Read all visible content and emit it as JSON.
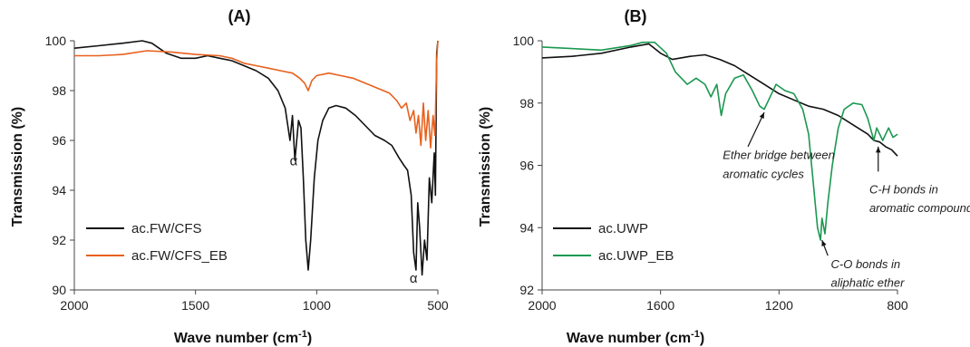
{
  "chart_data": [
    {
      "type": "line",
      "title": "(A)",
      "xlabel": "Wave number (cm",
      "xlabel_sup": "-1",
      "xlabel_end": ")",
      "ylabel": "Transmission (%)",
      "xlim": [
        2000,
        500
      ],
      "ylim": [
        90,
        100
      ],
      "xticks": [
        2000,
        1500,
        1000,
        500
      ],
      "xtick_labels": [
        "2000",
        "1500",
        "1000",
        "500"
      ],
      "yticks": [
        90,
        92,
        94,
        96,
        98,
        100
      ],
      "ytick_labels": [
        "90",
        "92",
        "94",
        "96",
        "98",
        "100"
      ],
      "grid": false,
      "legend_position": "bottom-left",
      "series": [
        {
          "name": "ac.FW/CFS",
          "color": "#111111",
          "points": [
            [
              2000,
              99.7
            ],
            [
              1900,
              99.8
            ],
            [
              1800,
              99.9
            ],
            [
              1720,
              100.0
            ],
            [
              1680,
              99.9
            ],
            [
              1620,
              99.5
            ],
            [
              1560,
              99.3
            ],
            [
              1500,
              99.3
            ],
            [
              1450,
              99.4
            ],
            [
              1400,
              99.3
            ],
            [
              1350,
              99.2
            ],
            [
              1300,
              99.0
            ],
            [
              1250,
              98.8
            ],
            [
              1200,
              98.5
            ],
            [
              1160,
              98.0
            ],
            [
              1130,
              97.3
            ],
            [
              1110,
              96.0
            ],
            [
              1100,
              97.0
            ],
            [
              1090,
              95.2
            ],
            [
              1075,
              96.8
            ],
            [
              1065,
              96.5
            ],
            [
              1055,
              94.5
            ],
            [
              1045,
              92.0
            ],
            [
              1035,
              90.8
            ],
            [
              1025,
              92.0
            ],
            [
              1010,
              94.5
            ],
            [
              995,
              96.0
            ],
            [
              975,
              96.8
            ],
            [
              950,
              97.3
            ],
            [
              920,
              97.4
            ],
            [
              880,
              97.3
            ],
            [
              840,
              97.0
            ],
            [
              800,
              96.6
            ],
            [
              760,
              96.2
            ],
            [
              720,
              96.0
            ],
            [
              690,
              95.8
            ],
            [
              660,
              95.3
            ],
            [
              640,
              95.0
            ],
            [
              625,
              94.8
            ],
            [
              610,
              93.8
            ],
            [
              600,
              91.5
            ],
            [
              590,
              90.8
            ],
            [
              583,
              93.5
            ],
            [
              575,
              92.5
            ],
            [
              565,
              90.6
            ],
            [
              555,
              92.0
            ],
            [
              545,
              91.2
            ],
            [
              535,
              94.5
            ],
            [
              525,
              93.5
            ],
            [
              515,
              95.5
            ],
            [
              510,
              93.8
            ],
            [
              505,
              99.5
            ],
            [
              500,
              100.0
            ]
          ]
        },
        {
          "name": "ac.FW/CFS_EB",
          "color": "#e8601c",
          "points": [
            [
              2000,
              99.4
            ],
            [
              1900,
              99.4
            ],
            [
              1800,
              99.45
            ],
            [
              1700,
              99.6
            ],
            [
              1600,
              99.55
            ],
            [
              1500,
              99.45
            ],
            [
              1400,
              99.4
            ],
            [
              1350,
              99.3
            ],
            [
              1300,
              99.1
            ],
            [
              1250,
              99.0
            ],
            [
              1200,
              98.9
            ],
            [
              1150,
              98.8
            ],
            [
              1100,
              98.7
            ],
            [
              1070,
              98.5
            ],
            [
              1050,
              98.3
            ],
            [
              1035,
              98.0
            ],
            [
              1020,
              98.4
            ],
            [
              1000,
              98.6
            ],
            [
              950,
              98.7
            ],
            [
              900,
              98.6
            ],
            [
              850,
              98.5
            ],
            [
              800,
              98.3
            ],
            [
              750,
              98.1
            ],
            [
              700,
              97.9
            ],
            [
              670,
              97.6
            ],
            [
              650,
              97.3
            ],
            [
              630,
              97.5
            ],
            [
              615,
              96.8
            ],
            [
              600,
              97.2
            ],
            [
              590,
              96.3
            ],
            [
              580,
              97.0
            ],
            [
              570,
              95.8
            ],
            [
              560,
              97.5
            ],
            [
              550,
              96.0
            ],
            [
              540,
              97.2
            ],
            [
              530,
              95.7
            ],
            [
              520,
              97.0
            ],
            [
              512,
              96.2
            ],
            [
              505,
              99.2
            ],
            [
              500,
              100.0
            ]
          ]
        }
      ],
      "annotations": [
        {
          "text": "α",
          "x": 1095,
          "y": 95.0
        },
        {
          "text": "α",
          "x": 600,
          "y": 90.3
        }
      ]
    },
    {
      "type": "line",
      "title": "(B)",
      "xlabel": "Wave number (cm",
      "xlabel_sup": "-1",
      "xlabel_end": ")",
      "ylabel": "Transmission (%)",
      "xlim": [
        2000,
        800
      ],
      "ylim": [
        92,
        100
      ],
      "xticks": [
        2000,
        1600,
        1200,
        800
      ],
      "xtick_labels": [
        "2000",
        "1600",
        "1200",
        "800"
      ],
      "yticks": [
        92,
        94,
        96,
        98,
        100
      ],
      "ytick_labels": [
        "92",
        "94",
        "96",
        "98",
        "100"
      ],
      "grid": false,
      "legend_position": "bottom-left",
      "series": [
        {
          "name": "ac.UWP",
          "color": "#111111",
          "points": [
            [
              2000,
              99.45
            ],
            [
              1900,
              99.5
            ],
            [
              1800,
              99.6
            ],
            [
              1700,
              99.8
            ],
            [
              1640,
              99.9
            ],
            [
              1600,
              99.6
            ],
            [
              1560,
              99.4
            ],
            [
              1500,
              99.5
            ],
            [
              1450,
              99.55
            ],
            [
              1400,
              99.4
            ],
            [
              1350,
              99.2
            ],
            [
              1300,
              98.9
            ],
            [
              1250,
              98.6
            ],
            [
              1200,
              98.3
            ],
            [
              1150,
              98.1
            ],
            [
              1100,
              97.9
            ],
            [
              1050,
              97.8
            ],
            [
              1000,
              97.6
            ],
            [
              950,
              97.3
            ],
            [
              900,
              97.0
            ],
            [
              880,
              96.8
            ],
            [
              860,
              96.75
            ],
            [
              840,
              96.6
            ],
            [
              820,
              96.5
            ],
            [
              800,
              96.3
            ]
          ]
        },
        {
          "name": "ac.UWP_EB",
          "color": "#1a9850",
          "points": [
            [
              2000,
              99.8
            ],
            [
              1900,
              99.75
            ],
            [
              1800,
              99.7
            ],
            [
              1700,
              99.85
            ],
            [
              1660,
              99.95
            ],
            [
              1620,
              99.95
            ],
            [
              1580,
              99.6
            ],
            [
              1550,
              99.0
            ],
            [
              1510,
              98.6
            ],
            [
              1480,
              98.8
            ],
            [
              1450,
              98.6
            ],
            [
              1430,
              98.2
            ],
            [
              1410,
              98.6
            ],
            [
              1395,
              97.6
            ],
            [
              1380,
              98.3
            ],
            [
              1350,
              98.8
            ],
            [
              1320,
              98.9
            ],
            [
              1290,
              98.4
            ],
            [
              1265,
              97.9
            ],
            [
              1250,
              97.8
            ],
            [
              1235,
              98.1
            ],
            [
              1210,
              98.6
            ],
            [
              1180,
              98.4
            ],
            [
              1150,
              98.3
            ],
            [
              1120,
              97.8
            ],
            [
              1100,
              97.0
            ],
            [
              1085,
              95.5
            ],
            [
              1070,
              94.0
            ],
            [
              1060,
              93.6
            ],
            [
              1055,
              94.3
            ],
            [
              1045,
              93.8
            ],
            [
              1035,
              94.8
            ],
            [
              1020,
              96.0
            ],
            [
              1000,
              97.2
            ],
            [
              980,
              97.8
            ],
            [
              950,
              98.0
            ],
            [
              920,
              97.95
            ],
            [
              900,
              97.5
            ],
            [
              880,
              96.8
            ],
            [
              870,
              97.2
            ],
            [
              850,
              96.8
            ],
            [
              830,
              97.2
            ],
            [
              815,
              96.9
            ],
            [
              800,
              97.0
            ]
          ]
        }
      ],
      "annotations": [
        {
          "text": "Ether bridge between",
          "x": 1390,
          "y": 96.2
        },
        {
          "text": "aromatic cycles",
          "x": 1390,
          "y": 95.6
        },
        {
          "text": "C-O bonds in",
          "x": 1025,
          "y": 92.7
        },
        {
          "text": "aliphatic ether",
          "x": 1025,
          "y": 92.1
        },
        {
          "text": "C-H bonds in",
          "x": 895,
          "y": 95.1
        },
        {
          "text": "aromatic compounds",
          "x": 895,
          "y": 94.5
        }
      ],
      "arrows": [
        {
          "from": [
            1305,
            96.6
          ],
          "to": [
            1250,
            97.7
          ]
        },
        {
          "from": [
            1035,
            93.1
          ],
          "to": [
            1055,
            93.6
          ]
        },
        {
          "from": [
            865,
            95.8
          ],
          "to": [
            865,
            96.6
          ]
        }
      ]
    }
  ]
}
